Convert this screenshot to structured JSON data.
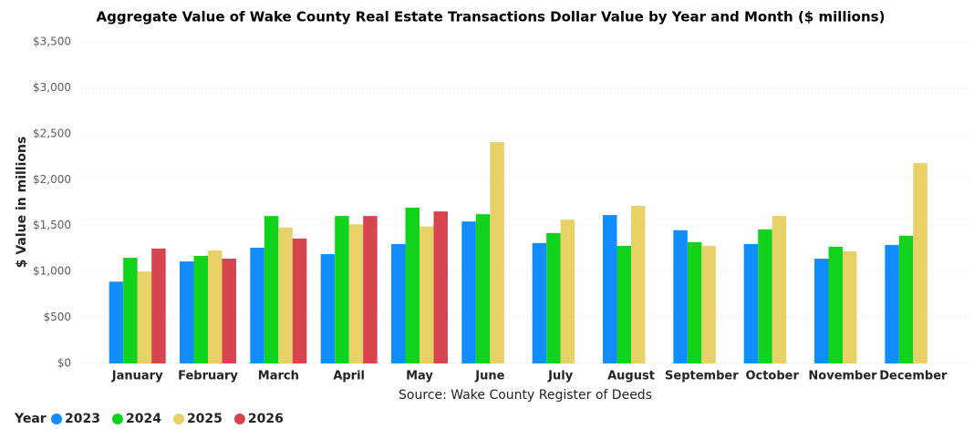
{
  "chart_data": {
    "type": "bar",
    "title": "Aggregate Value of Wake County Real Estate Transactions Dollar Value by Year and Month ($ millions)",
    "y_label": "$ Value in millions",
    "x_label": "Source: Wake County Register of Deeds",
    "legend_title": "Year",
    "categories": [
      "January",
      "February",
      "March",
      "April",
      "May",
      "June",
      "July",
      "August",
      "September",
      "October",
      "November",
      "December"
    ],
    "series": [
      {
        "name": "2023",
        "color": "#118dff",
        "values": [
          890,
          1110,
          1260,
          1190,
          1300,
          1545,
          1310,
          1615,
          1450,
          1300,
          1140,
          1290
        ]
      },
      {
        "name": "2024",
        "color": "#12d31c",
        "values": [
          1150,
          1170,
          1605,
          1605,
          1695,
          1625,
          1420,
          1280,
          1320,
          1460,
          1270,
          1390
        ]
      },
      {
        "name": "2025",
        "color": "#e8d166",
        "values": [
          1000,
          1230,
          1480,
          1515,
          1490,
          2410,
          1565,
          1715,
          1280,
          1605,
          1220,
          2180
        ]
      },
      {
        "name": "2026",
        "color": "#d64550",
        "values": [
          1250,
          1140,
          1360,
          1605,
          1655,
          null,
          null,
          null,
          null,
          null,
          null,
          null
        ]
      }
    ],
    "ylim": [
      0,
      3500
    ],
    "yticks": [
      {
        "value": 0,
        "label": "$0"
      },
      {
        "value": 500,
        "label": "$500"
      },
      {
        "value": 1000,
        "label": "$1,000"
      },
      {
        "value": 1500,
        "label": "$1,500"
      },
      {
        "value": 2000,
        "label": "$2,000"
      },
      {
        "value": 2500,
        "label": "$2,500"
      },
      {
        "value": 3000,
        "label": "$3,000"
      },
      {
        "value": 3500,
        "label": "$3,500"
      }
    ],
    "grid": true,
    "legend_position": "bottom-left"
  }
}
